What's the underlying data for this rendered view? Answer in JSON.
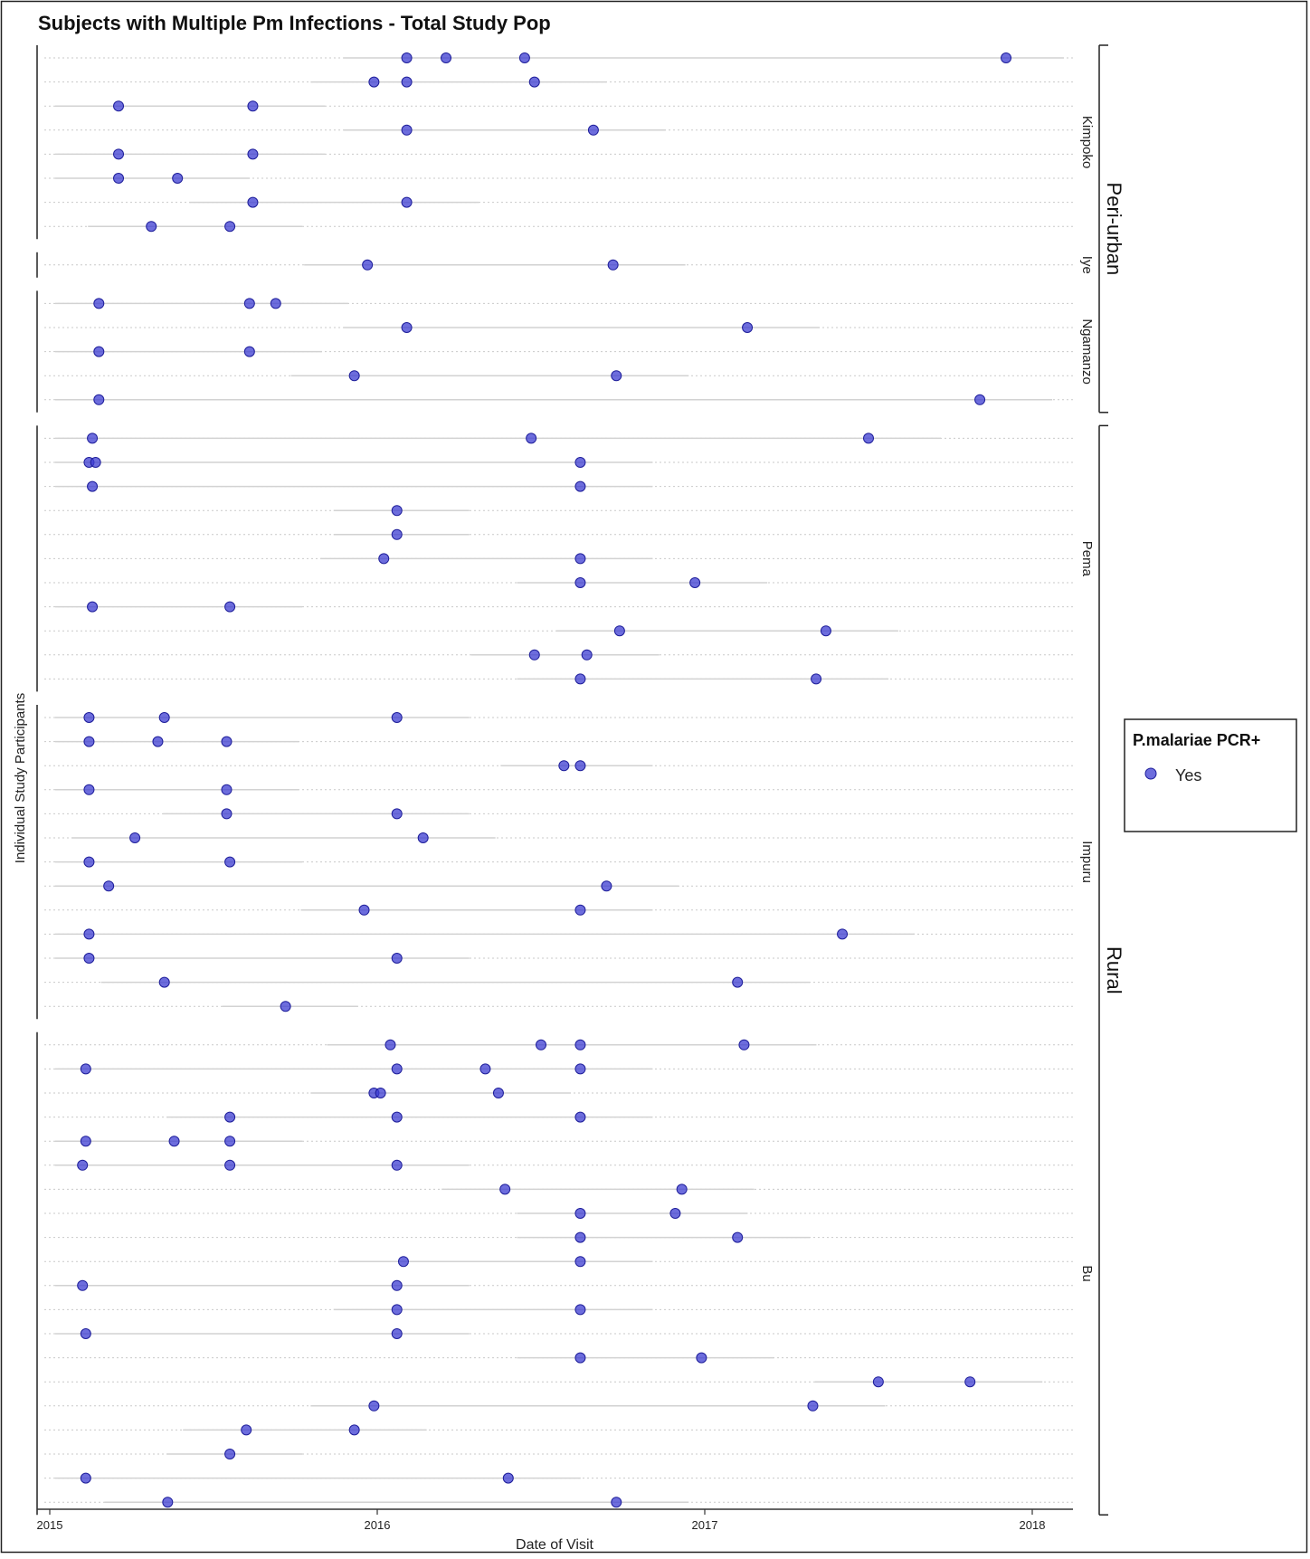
{
  "chart_data": {
    "type": "scatter",
    "title": "Subjects with Multiple Pm Infections - Total Study Pop",
    "xlabel": "Date of Visit",
    "ylabel": "Individual Study Participants",
    "x_ticks": [
      "2015",
      "2016",
      "2017",
      "2018"
    ],
    "legend": {
      "title": "P.malariae PCR+",
      "entries": [
        "Yes"
      ],
      "position": "right"
    },
    "point_color": "#3c3cd2",
    "strata": [
      {
        "name": "Peri-urban",
        "sites": [
          "Kimpoko",
          "Iye",
          "Ngamanzo"
        ]
      },
      {
        "name": "Rural",
        "sites": [
          "Pema",
          "Impuru",
          "Bu"
        ]
      }
    ],
    "sites": [
      {
        "name": "Kimpoko",
        "participants": [
          [
            2016.09,
            2016.21,
            2016.45,
            2017.92
          ],
          [
            2015.99,
            2016.09,
            2016.48
          ],
          [
            2015.21,
            2015.62
          ],
          [
            2016.09,
            2016.66
          ],
          [
            2015.21,
            2015.62
          ],
          [
            2015.21,
            2015.39
          ],
          [
            2015.62,
            2016.09
          ],
          [
            2015.31,
            2015.55
          ]
        ]
      },
      {
        "name": "Iye",
        "participants": [
          [
            2015.97,
            2016.72
          ]
        ]
      },
      {
        "name": "Ngamanzo",
        "participants": [
          [
            2015.15,
            2015.61,
            2015.69
          ],
          [
            2016.09,
            2017.13
          ],
          [
            2015.15,
            2015.61
          ],
          [
            2015.93,
            2016.73
          ],
          [
            2015.15,
            2017.84
          ]
        ]
      },
      {
        "name": "Pema",
        "participants": [
          [
            2015.13,
            2016.47,
            2017.5
          ],
          [
            2015.12,
            2015.14,
            2016.62
          ],
          [
            2015.13,
            2016.62
          ],
          [
            2016.06
          ],
          [
            2016.06
          ],
          [
            2016.02,
            2016.62
          ],
          [
            2016.62,
            2016.97
          ],
          [
            2015.13,
            2015.55
          ],
          [
            2016.74,
            2017.37
          ],
          [
            2016.48,
            2016.64
          ],
          [
            2016.62,
            2017.34
          ]
        ]
      },
      {
        "name": "Impuru",
        "participants": [
          [
            2015.12,
            2015.35,
            2016.06
          ],
          [
            2015.12,
            2015.33,
            2015.54
          ],
          [
            2016.57,
            2016.62
          ],
          [
            2015.12,
            2015.54
          ],
          [
            2015.54,
            2016.06
          ],
          [
            2015.26,
            2016.14
          ],
          [
            2015.12,
            2015.55
          ],
          [
            2015.18,
            2016.7
          ],
          [
            2015.96,
            2016.62
          ],
          [
            2015.12,
            2017.42
          ],
          [
            2015.12,
            2016.06
          ],
          [
            2015.35,
            2017.1
          ],
          [
            2015.72
          ]
        ]
      },
      {
        "name": "Bu",
        "participants": [
          [
            2016.04,
            2016.5,
            2016.62,
            2017.12
          ],
          [
            2015.11,
            2016.06,
            2016.33,
            2016.62
          ],
          [
            2015.99,
            2016.01,
            2016.37
          ],
          [
            2015.55,
            2016.06,
            2016.62
          ],
          [
            2015.11,
            2015.38,
            2015.55
          ],
          [
            2015.1,
            2015.55,
            2016.06
          ],
          [
            2016.39,
            2016.93
          ],
          [
            2016.62,
            2016.91
          ],
          [
            2016.62,
            2017.1
          ],
          [
            2016.08,
            2016.62
          ],
          [
            2015.1,
            2016.06
          ],
          [
            2016.06,
            2016.62
          ],
          [
            2015.11,
            2016.06
          ],
          [
            2016.62,
            2016.99
          ],
          [
            2017.53,
            2017.81
          ],
          [
            2015.99,
            2017.33
          ],
          [
            2015.6,
            2015.93
          ],
          [
            2015.55
          ],
          [
            2015.11,
            2016.4
          ],
          [
            2015.36,
            2016.73
          ]
        ]
      }
    ]
  }
}
